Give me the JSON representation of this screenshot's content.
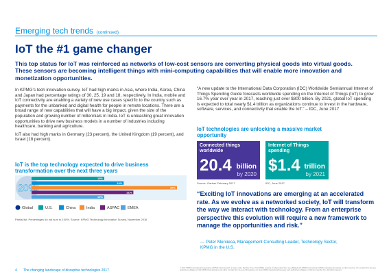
{
  "header": {
    "section": "Emerging tech trends",
    "continued": "(continued)"
  },
  "title": "IoT the #1 game changer",
  "lead": "This top status for IoT was reinforced as networks of low-cost sensors are converting physical goods into virtual goods. These sensors are becoming intelligent things with mini-computing capabilities that will enable more innovation and monetization opportunities.",
  "body": [
    "In KPMG’s tech innovation survey, IoT had high marks in Asia, where India, Korea, China and Japan had percentage ratings of 30, 25, 19 and 18, respectively. In India, mobile and IoT connectivity are enabling a variety of new use cases specific to the country such as payments for the unbanked and digital health for people in remote locations. There are a broad range of new capabilities that will have a big impact, given the size of the population and growing number of millennials in India. IoT is unleashing great innovation opportunities to drive new business models in a number of industries including healthcare, banking and agriculture.",
    "IoT also had high marks in Germany (23 percent), the United Kingdom (19 percent), and Israel (18 percent)."
  ],
  "chart_data": {
    "type": "bar",
    "title": "IoT is the top technology expected to drive business transformation over the next three years",
    "categories": [
      "Global",
      "U.S.",
      "China",
      "India",
      "ASPAC",
      "EMEA"
    ],
    "values": [
      20,
      15,
      19,
      30,
      21,
      15
    ],
    "value_labels": [
      "20%",
      "15%",
      "19%",
      "30%",
      "21%",
      "15%"
    ],
    "colors": [
      "#00338d",
      "#00a3a1",
      "#0091da",
      "#f68d2e",
      "#6d2077",
      "#4fa3e0"
    ],
    "note": "Partial list. Percentages do not sum to 100%. Source: KPMG Technology Innovation Survey, November 2016"
  },
  "idc_quote": "“A new update to the International Data Corporation (IDC) Worldwide Semiannual Internet of Things Spending Guide forecasts worldwide spending on the Internet of Things (IoT) to grow 16.7% year over year in 2017, reaching just over $800 billion. By 2021, global IoT spending is expected to total nearly $1.4 trillion as organizations continue to invest in the hardware, software, services, and connectivity that enable the IoT.” – IDC, June 2017",
  "market_heading": "IoT technologies are unlocking a massive market opportunity",
  "stats": [
    {
      "label": "Connected things worldwide",
      "number": "20.4",
      "unit": "billion",
      "by": "by 2020",
      "source": "Source: Gartner February 2017"
    },
    {
      "label": "Internet of Things spending",
      "number": "$1.4",
      "unit": "trillion",
      "by": "by 2021",
      "source": "IDC, June 2017"
    }
  ],
  "quote": "“Exciting IoT innovations are emerging at an accelerated rate. As we evolve as a networked society, IoT will transform the way we interact with technology. From an enterprise perspective this evolution will require a new framework to manage the opportunities and risk.”",
  "attribution": "— Peter Mercieca, Management Consulting Leader, Technology Sector, KPMG in the U.S.",
  "footer": {
    "page": "4",
    "doc": "The changing landscape of disruptive technologies 2017",
    "legal": "© 2017 KPMG International Cooperative (“KPMG International”), a Swiss entity. Member firms of the KPMG network of independent firms are affiliated with KPMG International. KPMG International provides no client services. No member firm has any authority to obligate or bind KPMG International or any other member firm vis-à-vis third parties, nor does KPMG International have any such authority to obligate or bind any member firm. All rights reserved."
  }
}
